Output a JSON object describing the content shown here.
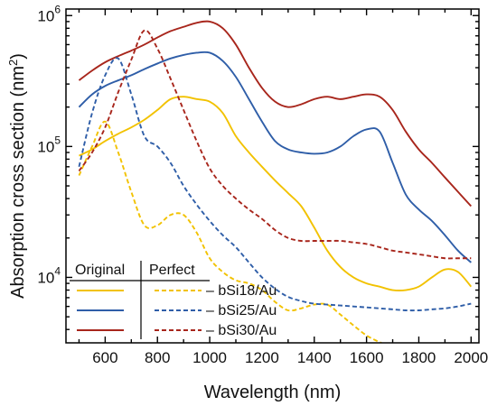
{
  "chart_data": {
    "type": "line",
    "xlabel": "Wavelength (nm)",
    "ylabel": "Absorption cross section (nm",
    "ylabel_sup": "2",
    "ylabel_close": ")",
    "xlim": [
      450,
      2030
    ],
    "ylim_log10": [
      3.5,
      6.05
    ],
    "y_scale": "log",
    "x_ticks": [
      600,
      800,
      1000,
      1200,
      1400,
      1600,
      1800,
      2000
    ],
    "y_ticks": [
      {
        "value": 10000,
        "base": "10",
        "exp": "4"
      },
      {
        "value": 100000,
        "base": "10",
        "exp": "5"
      },
      {
        "value": 1000000,
        "base": "10",
        "exp": "6"
      }
    ],
    "legend": {
      "header_original": "Original",
      "header_perfect": "Perfect",
      "placement": "bottom-left",
      "entries": [
        "– bSi18/Au",
        "– bSi25/Au",
        "– bSi30/Au"
      ]
    },
    "series": [
      {
        "name": "bSi18/Au",
        "group": "Original",
        "color": "#f2c200",
        "style": "solid",
        "x": [
          500,
          550,
          600,
          650,
          700,
          750,
          800,
          850,
          900,
          950,
          1000,
          1050,
          1100,
          1150,
          1200,
          1250,
          1300,
          1350,
          1400,
          1450,
          1500,
          1550,
          1600,
          1650,
          1700,
          1750,
          1800,
          1850,
          1900,
          1950,
          2000
        ],
        "y": [
          85000,
          95000,
          110000,
          125000,
          140000,
          160000,
          190000,
          230000,
          240000,
          230000,
          220000,
          180000,
          120000,
          90000,
          70000,
          55000,
          44000,
          35000,
          24000,
          16000,
          12000,
          10000,
          9000,
          8500,
          8000,
          8000,
          8500,
          10000,
          11500,
          11000,
          8500
        ]
      },
      {
        "name": "bSi25/Au",
        "group": "Original",
        "color": "#2f5ea8",
        "style": "solid",
        "x": [
          500,
          550,
          600,
          650,
          700,
          750,
          800,
          850,
          900,
          950,
          1000,
          1050,
          1100,
          1150,
          1200,
          1250,
          1300,
          1350,
          1400,
          1450,
          1500,
          1550,
          1600,
          1650,
          1700,
          1750,
          1800,
          1850,
          1900,
          1950,
          2000
        ],
        "y": [
          200000,
          250000,
          290000,
          320000,
          350000,
          390000,
          430000,
          470000,
          500000,
          520000,
          520000,
          450000,
          340000,
          230000,
          155000,
          110000,
          95000,
          90000,
          88000,
          90000,
          100000,
          120000,
          135000,
          130000,
          75000,
          43000,
          33000,
          27000,
          21000,
          16000,
          13000
        ]
      },
      {
        "name": "bSi30/Au",
        "group": "Original",
        "color": "#a8261c",
        "style": "solid",
        "x": [
          500,
          550,
          600,
          650,
          700,
          750,
          800,
          850,
          900,
          950,
          1000,
          1050,
          1100,
          1150,
          1200,
          1250,
          1300,
          1350,
          1400,
          1450,
          1500,
          1550,
          1600,
          1650,
          1700,
          1750,
          1800,
          1850,
          1900,
          1950,
          2000
        ],
        "y": [
          320000,
          380000,
          440000,
          490000,
          540000,
          600000,
          680000,
          760000,
          820000,
          880000,
          900000,
          800000,
          600000,
          400000,
          280000,
          220000,
          200000,
          210000,
          230000,
          240000,
          230000,
          240000,
          250000,
          240000,
          190000,
          130000,
          95000,
          75000,
          58000,
          45000,
          35000
        ]
      },
      {
        "name": "bSi18/Au",
        "group": "Perfect",
        "color": "#f2c200",
        "style": "dashed",
        "x": [
          500,
          550,
          600,
          650,
          700,
          750,
          800,
          850,
          900,
          950,
          1000,
          1050,
          1100,
          1150,
          1200,
          1250,
          1300,
          1350,
          1400,
          1450,
          1500,
          1550,
          1600,
          1650,
          1700,
          1750,
          1800,
          1850,
          1900,
          1950,
          2000
        ],
        "y": [
          60000,
          100000,
          155000,
          90000,
          45000,
          25000,
          25000,
          30000,
          30000,
          22000,
          14000,
          11000,
          9500,
          9000,
          8000,
          6500,
          5600,
          5800,
          6200,
          6200,
          5200,
          4300,
          3600,
          3200,
          2900,
          2700,
          2600,
          2500,
          2400,
          2550,
          2700
        ]
      },
      {
        "name": "bSi25/Au",
        "group": "Perfect",
        "color": "#2f5ea8",
        "style": "dashed",
        "x": [
          500,
          550,
          600,
          650,
          700,
          750,
          800,
          850,
          900,
          950,
          1000,
          1050,
          1100,
          1150,
          1200,
          1250,
          1300,
          1350,
          1400,
          1450,
          1500,
          1550,
          1600,
          1650,
          1700,
          1750,
          1800,
          1850,
          1900,
          1950,
          2000
        ],
        "y": [
          70000,
          180000,
          350000,
          470000,
          250000,
          120000,
          100000,
          75000,
          50000,
          36000,
          27000,
          21000,
          17000,
          13000,
          10000,
          8200,
          7100,
          6600,
          6300,
          6200,
          6100,
          6000,
          5900,
          5800,
          5700,
          5600,
          5600,
          5700,
          5800,
          6000,
          6300
        ]
      },
      {
        "name": "bSi30/Au",
        "group": "Perfect",
        "color": "#a8261c",
        "style": "dashed",
        "x": [
          500,
          550,
          600,
          650,
          700,
          750,
          800,
          850,
          900,
          950,
          1000,
          1050,
          1100,
          1150,
          1200,
          1250,
          1300,
          1350,
          1400,
          1450,
          1500,
          1550,
          1600,
          1650,
          1700,
          1750,
          1800,
          1850,
          1900,
          1950,
          2000
        ],
        "y": [
          65000,
          90000,
          140000,
          260000,
          460000,
          770000,
          560000,
          330000,
          190000,
          110000,
          68000,
          50000,
          40000,
          33000,
          28000,
          23000,
          20000,
          19000,
          19000,
          19000,
          19000,
          18500,
          18000,
          17000,
          16000,
          15500,
          15000,
          14500,
          14000,
          14000,
          14000
        ]
      }
    ]
  }
}
